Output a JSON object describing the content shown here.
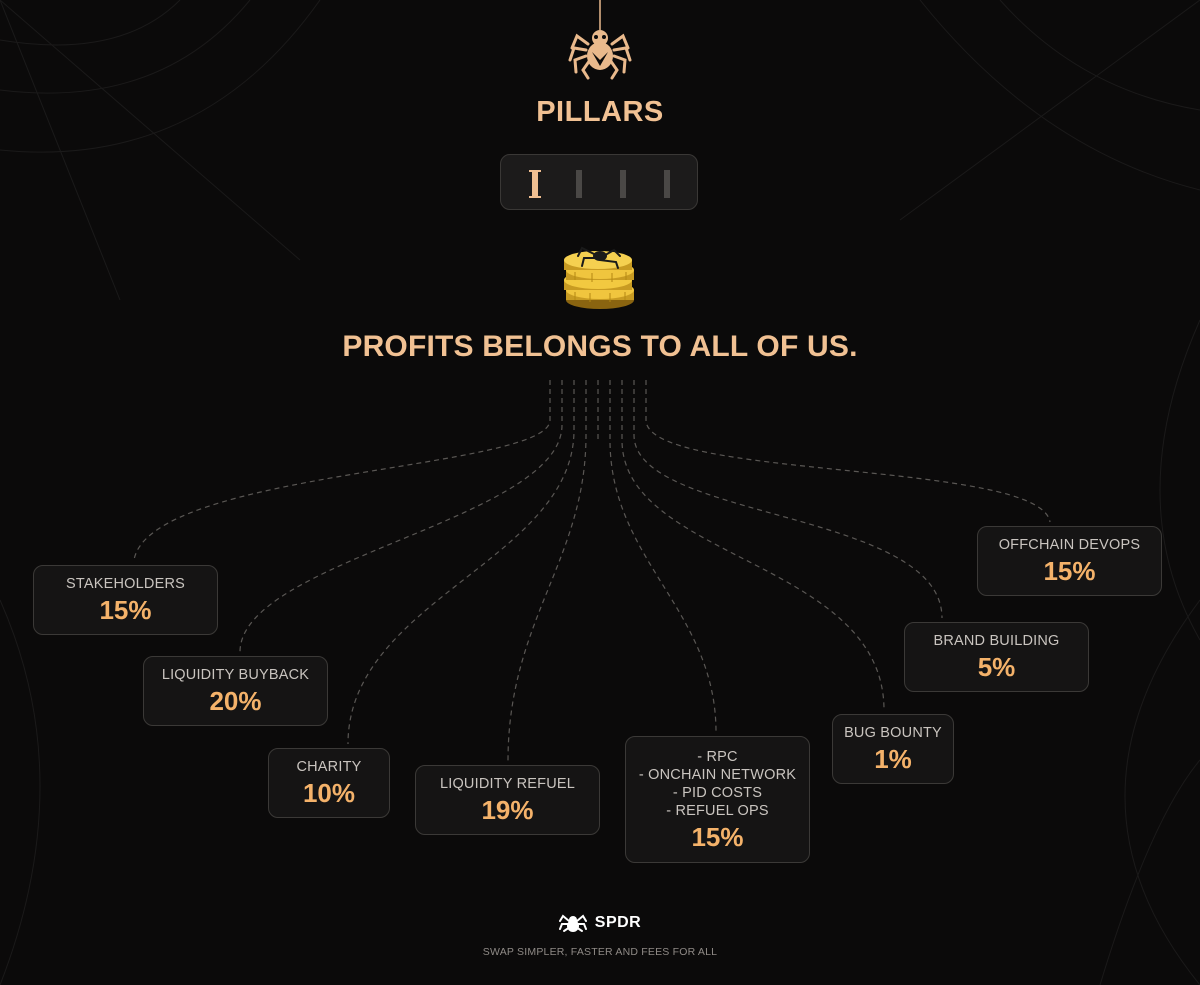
{
  "header": {
    "title": "PILLARS",
    "pillars": [
      {
        "label": "I",
        "active": true
      },
      {
        "label": "I",
        "active": false
      },
      {
        "label": "I",
        "active": false
      },
      {
        "label": "I",
        "active": false
      }
    ]
  },
  "tagline": "PROFITS BELONGS TO ALL OF US.",
  "allocations": [
    {
      "label": "STAKEHOLDERS",
      "value": "15%"
    },
    {
      "label": "LIQUIDITY BUYBACK",
      "value": "20%"
    },
    {
      "label": "CHARITY",
      "value": "10%"
    },
    {
      "label": "LIQUIDITY REFUEL",
      "value": "19%"
    },
    {
      "label": "- RPC\n- ONCHAIN NETWORK\n- PID COSTS\n- REFUEL OPS",
      "value": "15%"
    },
    {
      "label": "BUG BOUNTY",
      "value": "1%"
    },
    {
      "label": "BRAND BUILDING",
      "value": "5%"
    },
    {
      "label": "OFFCHAIN DEVOPS",
      "value": "15%"
    }
  ],
  "footer": {
    "brand": "SPDR",
    "slogan": "SWAP SIMPLER, FASTER AND FEES FOR ALL"
  },
  "colors": {
    "background": "#0b0a0a",
    "accent_text": "#f1c193",
    "value_orange": "#f4b26a",
    "box_border": "#3b3937"
  },
  "icons": [
    "spider-icon",
    "coin-stack-icon",
    "spdr-logo-icon",
    "cobweb-decoration"
  ]
}
